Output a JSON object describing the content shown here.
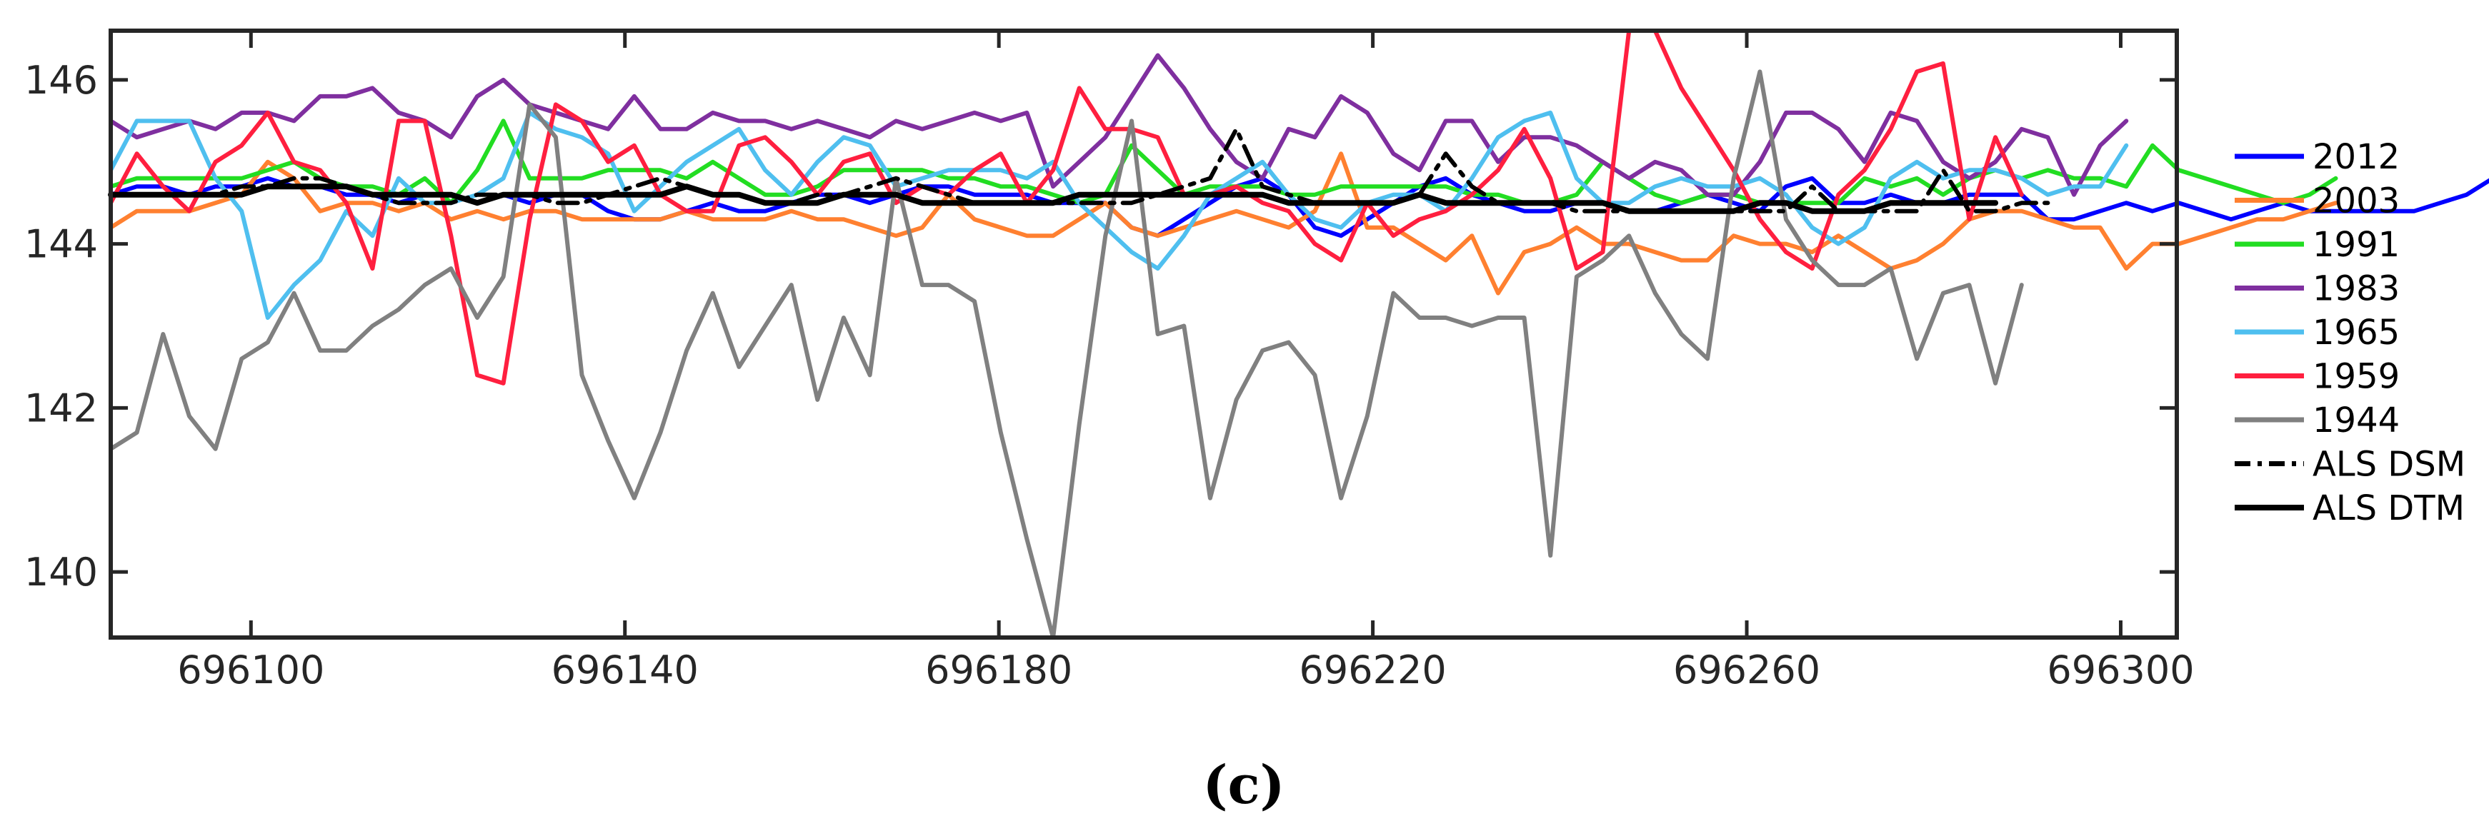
{
  "chart_data": {
    "type": "line",
    "caption": "(c)",
    "xlim": [
      696085,
      696306
    ],
    "ylim": [
      139.2,
      146.6
    ],
    "x_ticks": [
      696100,
      696140,
      696180,
      696220,
      696260,
      696300
    ],
    "y_ticks": [
      140,
      142,
      144,
      146
    ],
    "x_start": 696085,
    "x_step": 2.8,
    "grid": false,
    "legend_position": "right",
    "series": [
      {
        "name": "2012",
        "color": "#0000ff",
        "dash": "solid",
        "values": [
          144.6,
          144.7,
          144.7,
          144.6,
          144.7,
          144.7,
          144.8,
          144.7,
          144.7,
          144.6,
          144.6,
          144.5,
          144.6,
          144.6,
          144.5,
          144.6,
          144.5,
          144.6,
          144.6,
          144.4,
          144.3,
          144.3,
          144.4,
          144.5,
          144.4,
          144.4,
          144.5,
          144.6,
          144.6,
          144.5,
          144.6,
          144.7,
          144.7,
          144.6,
          144.6,
          144.6,
          144.5,
          144.5,
          144.5,
          144.2,
          144.1,
          144.3,
          144.5,
          144.7,
          144.8,
          144.6,
          144.2,
          144.1,
          144.3,
          144.5,
          144.7,
          144.8,
          144.6,
          144.5,
          144.4,
          144.4,
          144.5,
          144.5,
          144.4,
          144.4,
          144.5,
          144.6,
          144.5,
          144.4,
          144.7,
          144.8,
          144.5,
          144.5,
          144.6,
          144.5,
          144.5,
          144.6,
          144.6,
          144.6,
          144.3,
          144.3,
          144.4,
          144.5,
          144.4,
          144.5,
          144.4,
          144.3,
          144.4,
          144.5,
          144.4,
          144.4,
          144.4,
          144.4,
          144.4,
          144.5,
          144.6,
          144.8
        ]
      },
      {
        "name": "2003",
        "color": "#ff8030",
        "dash": "solid",
        "values": [
          144.2,
          144.4,
          144.4,
          144.4,
          144.5,
          144.6,
          145.0,
          144.8,
          144.4,
          144.5,
          144.5,
          144.4,
          144.5,
          144.3,
          144.4,
          144.3,
          144.4,
          144.4,
          144.3,
          144.3,
          144.3,
          144.3,
          144.4,
          144.3,
          144.3,
          144.3,
          144.4,
          144.3,
          144.3,
          144.2,
          144.1,
          144.2,
          144.6,
          144.3,
          144.2,
          144.1,
          144.1,
          144.3,
          144.5,
          144.2,
          144.1,
          144.2,
          144.3,
          144.4,
          144.3,
          144.2,
          144.4,
          145.1,
          144.2,
          144.2,
          144.0,
          143.8,
          144.1,
          143.4,
          143.9,
          144.0,
          144.2,
          144.0,
          144.0,
          143.9,
          143.8,
          143.8,
          144.1,
          144.0,
          144.0,
          143.9,
          144.1,
          143.9,
          143.7,
          143.8,
          144.0,
          144.3,
          144.4,
          144.4,
          144.3,
          144.2,
          144.2,
          143.7,
          144.0,
          144.0,
          144.1,
          144.2,
          144.3,
          144.3,
          144.4,
          144.5
        ]
      },
      {
        "name": "1991",
        "color": "#22dd22",
        "dash": "solid",
        "values": [
          144.7,
          144.8,
          144.8,
          144.8,
          144.8,
          144.8,
          144.9,
          145.0,
          144.8,
          144.7,
          144.7,
          144.6,
          144.8,
          144.5,
          144.9,
          145.5,
          144.8,
          144.8,
          144.8,
          144.9,
          144.9,
          144.9,
          144.8,
          145.0,
          144.8,
          144.6,
          144.6,
          144.7,
          144.9,
          144.9,
          144.9,
          144.9,
          144.8,
          144.8,
          144.7,
          144.7,
          144.6,
          144.5,
          144.6,
          145.2,
          144.9,
          144.6,
          144.7,
          144.7,
          144.7,
          144.6,
          144.6,
          144.7,
          144.7,
          144.7,
          144.7,
          144.7,
          144.6,
          144.6,
          144.5,
          144.5,
          144.6,
          145.0,
          144.8,
          144.6,
          144.5,
          144.6,
          144.6,
          144.5,
          144.5,
          144.5,
          144.5,
          144.8,
          144.7,
          144.8,
          144.6,
          144.8,
          144.9,
          144.8,
          144.9,
          144.8,
          144.8,
          144.7,
          145.2,
          144.9,
          144.8,
          144.7,
          144.6,
          144.5,
          144.6,
          144.8
        ]
      },
      {
        "name": "1983",
        "color": "#7f2f9f",
        "dash": "solid",
        "values": [
          145.5,
          145.3,
          145.4,
          145.5,
          145.4,
          145.6,
          145.6,
          145.5,
          145.8,
          145.8,
          145.9,
          145.6,
          145.5,
          145.3,
          145.8,
          146.0,
          145.7,
          145.6,
          145.5,
          145.4,
          145.8,
          145.4,
          145.4,
          145.6,
          145.5,
          145.5,
          145.4,
          145.5,
          145.4,
          145.3,
          145.5,
          145.4,
          145.5,
          145.6,
          145.5,
          145.6,
          144.7,
          145.0,
          145.3,
          145.8,
          146.3,
          145.9,
          145.4,
          145.0,
          144.8,
          145.4,
          145.3,
          145.8,
          145.6,
          145.1,
          144.9,
          145.5,
          145.5,
          145.0,
          145.3,
          145.3,
          145.2,
          145.0,
          144.8,
          145.0,
          144.9,
          144.6,
          144.6,
          145.0,
          145.6,
          145.6,
          145.4,
          145.0,
          145.6,
          145.5,
          145.0,
          144.8,
          145.0,
          145.4,
          145.3,
          144.6,
          145.2,
          145.5
        ]
      },
      {
        "name": "1965",
        "color": "#4fbfef",
        "dash": "solid",
        "values": [
          144.9,
          145.5,
          145.5,
          145.5,
          144.8,
          144.4,
          143.1,
          143.5,
          143.8,
          144.4,
          144.1,
          144.8,
          144.5,
          144.5,
          144.6,
          144.8,
          145.6,
          145.4,
          145.3,
          145.1,
          144.4,
          144.7,
          145.0,
          145.2,
          145.4,
          144.9,
          144.6,
          145.0,
          145.3,
          145.2,
          144.7,
          144.8,
          144.9,
          144.9,
          144.9,
          144.8,
          145.0,
          144.5,
          144.2,
          143.9,
          143.7,
          144.1,
          144.6,
          144.8,
          145.0,
          144.6,
          144.3,
          144.2,
          144.5,
          144.6,
          144.6,
          144.4,
          144.8,
          145.3,
          145.5,
          145.6,
          144.8,
          144.5,
          144.5,
          144.7,
          144.8,
          144.7,
          144.7,
          144.8,
          144.6,
          144.2,
          144.0,
          144.2,
          144.8,
          145.0,
          144.8,
          144.9,
          144.9,
          144.8,
          144.6,
          144.7,
          144.7,
          145.2
        ]
      },
      {
        "name": "1959",
        "color": "#ff1f3f",
        "dash": "solid",
        "values": [
          144.5,
          145.1,
          144.7,
          144.4,
          145.0,
          145.2,
          145.6,
          145.0,
          144.9,
          144.5,
          143.7,
          145.5,
          145.5,
          144.1,
          142.4,
          142.3,
          144.3,
          145.7,
          145.5,
          145.0,
          145.2,
          144.6,
          144.4,
          144.4,
          145.2,
          145.3,
          145.0,
          144.6,
          145.0,
          145.1,
          144.5,
          144.7,
          144.6,
          144.9,
          145.1,
          144.5,
          144.9,
          145.9,
          145.4,
          145.4,
          145.3,
          144.6,
          144.6,
          144.7,
          144.5,
          144.4,
          144.0,
          143.8,
          144.5,
          144.1,
          144.3,
          144.4,
          144.6,
          144.9,
          145.4,
          144.8,
          143.7,
          143.9,
          146.6,
          146.6,
          145.9,
          145.4,
          144.9,
          144.3,
          143.9,
          143.7,
          144.6,
          144.9,
          145.4,
          146.1,
          146.2,
          144.3,
          145.3,
          144.6
        ]
      },
      {
        "name": "1944",
        "color": "#808080",
        "dash": "solid",
        "values": [
          141.5,
          141.7,
          142.9,
          141.9,
          141.5,
          142.6,
          142.8,
          143.4,
          142.7,
          142.7,
          143.0,
          143.2,
          143.5,
          143.7,
          143.1,
          143.6,
          145.7,
          145.3,
          142.4,
          141.6,
          140.9,
          141.7,
          142.7,
          143.4,
          142.5,
          143.0,
          143.5,
          142.1,
          143.1,
          142.4,
          144.8,
          143.5,
          143.5,
          143.3,
          141.7,
          140.4,
          139.2,
          141.8,
          144.1,
          145.5,
          142.9,
          143.0,
          140.9,
          142.1,
          142.7,
          142.8,
          142.4,
          140.9,
          141.9,
          143.4,
          143.1,
          143.1,
          143.0,
          143.1,
          143.1,
          140.2,
          143.6,
          143.8,
          144.1,
          143.4,
          142.9,
          142.6,
          144.8,
          146.1,
          144.3,
          143.8,
          143.5,
          143.5,
          143.7,
          142.6,
          143.4,
          143.5,
          142.3,
          143.5
        ]
      },
      {
        "name": "ALS DSM",
        "color": "#000000",
        "dash": "dashdot",
        "values": [
          144.6,
          144.6,
          144.6,
          144.6,
          144.6,
          144.7,
          144.7,
          144.8,
          144.8,
          144.7,
          144.6,
          144.5,
          144.5,
          144.5,
          144.6,
          144.6,
          144.6,
          144.5,
          144.5,
          144.6,
          144.7,
          144.8,
          144.7,
          144.6,
          144.6,
          144.5,
          144.5,
          144.6,
          144.6,
          144.7,
          144.8,
          144.7,
          144.6,
          144.5,
          144.5,
          144.5,
          144.5,
          144.5,
          144.5,
          144.5,
          144.6,
          144.7,
          144.8,
          145.4,
          144.7,
          144.6,
          144.5,
          144.5,
          144.5,
          144.5,
          144.6,
          145.1,
          144.7,
          144.5,
          144.5,
          144.5,
          144.4,
          144.4,
          144.4,
          144.4,
          144.4,
          144.4,
          144.4,
          144.4,
          144.4,
          144.7,
          144.4,
          144.4,
          144.4,
          144.4,
          144.9,
          144.4,
          144.4,
          144.5,
          144.5
        ]
      },
      {
        "name": "ALS DTM",
        "color": "#000000",
        "dash": "solid",
        "values": [
          144.6,
          144.6,
          144.6,
          144.6,
          144.6,
          144.6,
          144.7,
          144.7,
          144.7,
          144.7,
          144.6,
          144.6,
          144.6,
          144.6,
          144.5,
          144.6,
          144.6,
          144.6,
          144.6,
          144.6,
          144.6,
          144.6,
          144.7,
          144.6,
          144.6,
          144.5,
          144.5,
          144.5,
          144.6,
          144.6,
          144.6,
          144.5,
          144.5,
          144.5,
          144.5,
          144.5,
          144.5,
          144.6,
          144.6,
          144.6,
          144.6,
          144.6,
          144.6,
          144.6,
          144.6,
          144.5,
          144.5,
          144.5,
          144.5,
          144.5,
          144.6,
          144.5,
          144.5,
          144.5,
          144.5,
          144.5,
          144.5,
          144.5,
          144.4,
          144.4,
          144.4,
          144.4,
          144.4,
          144.5,
          144.5,
          144.4,
          144.4,
          144.4,
          144.5,
          144.5,
          144.5,
          144.5,
          144.5
        ]
      }
    ]
  }
}
